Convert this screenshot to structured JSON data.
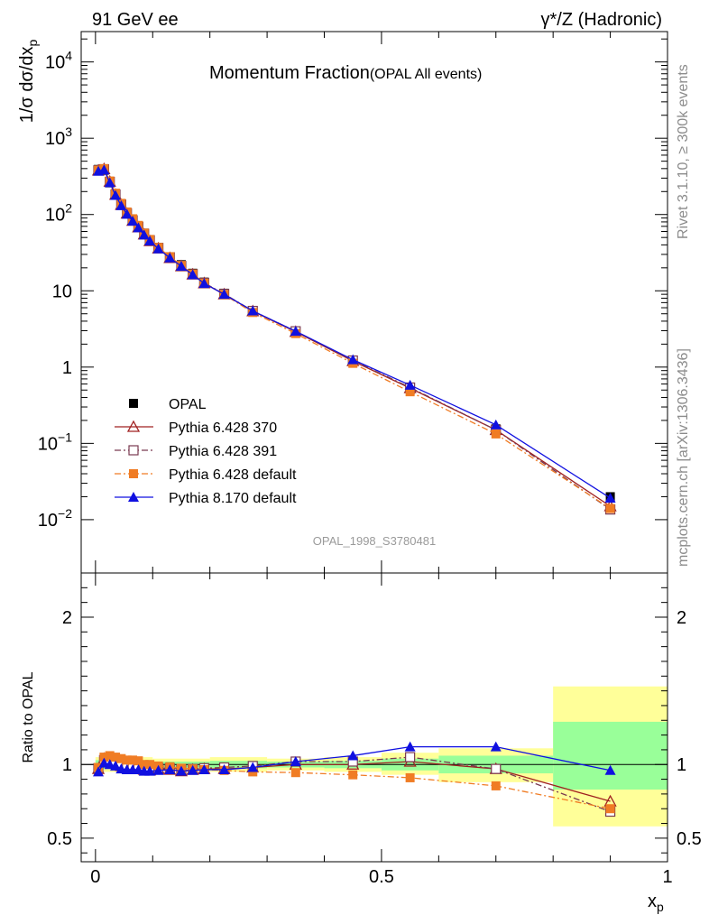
{
  "header": {
    "energy_label": "91 GeV ee",
    "process_label": "γ*/Z (Hadronic)"
  },
  "side_labels": {
    "rivet": "Rivet 3.1.10, ≥ 300k events",
    "site": "mcplots.cern.ch [arXiv:1306.3436]"
  },
  "chart_data": [
    {
      "type": "line",
      "panel": "main",
      "title": "Momentum Fraction",
      "subtitle": "(OPAL All events)",
      "watermark": "OPAL_1998_S3780481",
      "ylabel_html": "1/σ dσ/dx",
      "ylabel_sub": "p",
      "xlabel": "x",
      "xlabel_sub": "p",
      "yscale": "log",
      "ylim": [
        0.002,
        25000
      ],
      "xlim": [
        -0.025,
        1.0
      ],
      "legend_position": "lower-left",
      "y_ticks": [
        {
          "label_base": "10",
          "label_exp": "4",
          "v": 10000
        },
        {
          "label_base": "10",
          "label_exp": "3",
          "v": 1000
        },
        {
          "label_base": "10",
          "label_exp": "2",
          "v": 100
        },
        {
          "label_base": "10",
          "label_exp": "",
          "v": 10
        },
        {
          "label_base": "1",
          "label_exp": "",
          "v": 1
        },
        {
          "label_base": "10",
          "label_exp": "−1",
          "v": 0.1
        },
        {
          "label_base": "10",
          "label_exp": "−2",
          "v": 0.01
        }
      ],
      "x": [
        0.005,
        0.015,
        0.025,
        0.035,
        0.045,
        0.055,
        0.065,
        0.075,
        0.085,
        0.095,
        0.11,
        0.13,
        0.15,
        0.17,
        0.19,
        0.225,
        0.275,
        0.35,
        0.45,
        0.55,
        0.7,
        0.9
      ],
      "series": [
        {
          "name": "OPAL",
          "color": "#000000",
          "marker": "square-filled",
          "line": "none",
          "values": [
            390,
            380,
            260,
            180,
            135,
            105,
            85,
            70,
            57,
            47,
            37,
            28,
            22,
            17,
            13,
            9.3,
            5.5,
            2.9,
            1.2,
            0.52,
            0.155,
            0.02
          ]
        },
        {
          "name": "Pythia 6.428 370",
          "color": "#a02020",
          "marker": "triangle-open",
          "line": "solid",
          "values": [
            378,
            395,
            270,
            182,
            134,
            103,
            83,
            68,
            55,
            45,
            36,
            27,
            21,
            16.4,
            12.6,
            9.0,
            5.4,
            2.9,
            1.2,
            0.53,
            0.15,
            0.015
          ]
        },
        {
          "name": "Pythia 6.428 391",
          "color": "#7a3a50",
          "marker": "square-open",
          "line": "dashdot",
          "values": [
            380,
            392,
            268,
            183,
            135,
            104,
            84,
            69,
            56,
            46,
            36.5,
            27.5,
            21.2,
            16.5,
            12.7,
            9.1,
            5.45,
            2.95,
            1.22,
            0.54,
            0.15,
            0.0136
          ]
        },
        {
          "name": "Pythia 6.428 default",
          "color": "#f07c24",
          "marker": "square-filled",
          "line": "dashdot",
          "values": [
            382,
            400,
            275,
            190,
            140,
            108,
            88,
            72,
            57,
            47,
            37,
            28,
            21.5,
            16.6,
            12.6,
            8.9,
            5.2,
            2.75,
            1.12,
            0.475,
            0.133,
            0.014
          ]
        },
        {
          "name": "Pythia 8.170 default",
          "color": "#1010e0",
          "marker": "triangle-filled",
          "line": "solid",
          "values": [
            370,
            385,
            262,
            178,
            131,
            101,
            82,
            67,
            54,
            45,
            35.5,
            27,
            21,
            16.3,
            12.5,
            9.0,
            5.45,
            2.95,
            1.25,
            0.58,
            0.175,
            0.0192
          ]
        }
      ]
    },
    {
      "type": "line",
      "panel": "ratio",
      "ylabel": "Ratio to OPAL",
      "yscale": "linear",
      "ylim": [
        0.34,
        2.3
      ],
      "xlim": [
        -0.025,
        1.0
      ],
      "y_ticks": [
        {
          "label": "2",
          "v": 2
        },
        {
          "label": "1",
          "v": 1
        },
        {
          "label": "0.5",
          "v": 0.5
        }
      ],
      "x_ticks": [
        {
          "label": "0",
          "v": 0
        },
        {
          "label": "0.5",
          "v": 0.5
        },
        {
          "label": "1",
          "v": 1
        }
      ],
      "bands": [
        {
          "x0": 0.0,
          "x1": 0.1,
          "yellow": [
            0.95,
            1.05
          ],
          "green": [
            0.97,
            1.03
          ]
        },
        {
          "x0": 0.1,
          "x1": 0.2,
          "yellow": [
            0.96,
            1.04
          ],
          "green": [
            0.98,
            1.02
          ]
        },
        {
          "x0": 0.2,
          "x1": 0.3,
          "yellow": [
            0.95,
            1.05
          ],
          "green": [
            0.975,
            1.025
          ]
        },
        {
          "x0": 0.3,
          "x1": 0.4,
          "yellow": [
            0.96,
            1.04
          ],
          "green": [
            0.98,
            1.02
          ]
        },
        {
          "x0": 0.4,
          "x1": 0.5,
          "yellow": [
            0.95,
            1.05
          ],
          "green": [
            0.975,
            1.025
          ]
        },
        {
          "x0": 0.5,
          "x1": 0.6,
          "yellow": [
            0.93,
            1.08
          ],
          "green": [
            0.96,
            1.04
          ]
        },
        {
          "x0": 0.6,
          "x1": 0.8,
          "yellow": [
            0.88,
            1.11
          ],
          "green": [
            0.94,
            1.06
          ]
        },
        {
          "x0": 0.8,
          "x1": 1.0,
          "yellow": [
            0.58,
            1.53
          ],
          "green": [
            0.83,
            1.29
          ]
        }
      ],
      "x": [
        0.005,
        0.015,
        0.025,
        0.035,
        0.045,
        0.055,
        0.065,
        0.075,
        0.085,
        0.095,
        0.11,
        0.13,
        0.15,
        0.17,
        0.19,
        0.225,
        0.275,
        0.35,
        0.45,
        0.55,
        0.7,
        0.9
      ],
      "series": [
        {
          "name": "Pythia 6.428 370",
          "color": "#a02020",
          "marker": "triangle-open",
          "line": "solid",
          "values": [
            0.97,
            1.04,
            1.04,
            1.01,
            0.99,
            0.98,
            0.98,
            0.97,
            0.965,
            0.96,
            0.97,
            0.965,
            0.955,
            0.965,
            0.97,
            0.97,
            0.98,
            1.0,
            1.0,
            1.02,
            0.97,
            0.75
          ]
        },
        {
          "name": "Pythia 6.428 391",
          "color": "#7a3a50",
          "marker": "square-open",
          "line": "dashdot",
          "values": [
            0.975,
            1.03,
            1.03,
            1.015,
            1.0,
            0.99,
            0.985,
            0.98,
            0.98,
            0.975,
            0.975,
            0.975,
            0.97,
            0.97,
            0.975,
            0.98,
            0.99,
            1.02,
            1.02,
            1.05,
            0.97,
            0.68
          ]
        },
        {
          "name": "Pythia 6.428 default",
          "color": "#f07c24",
          "marker": "square-filled",
          "line": "dashdot",
          "values": [
            0.98,
            1.05,
            1.06,
            1.05,
            1.04,
            1.03,
            1.03,
            1.025,
            1.0,
            1.0,
            0.99,
            0.985,
            0.975,
            0.97,
            0.965,
            0.96,
            0.95,
            0.945,
            0.93,
            0.91,
            0.855,
            0.7
          ]
        },
        {
          "name": "Pythia 8.170 default",
          "color": "#1010e0",
          "marker": "triangle-filled",
          "line": "solid",
          "values": [
            0.95,
            1.01,
            1.0,
            0.99,
            0.97,
            0.965,
            0.965,
            0.965,
            0.955,
            0.955,
            0.96,
            0.965,
            0.955,
            0.96,
            0.965,
            0.965,
            0.98,
            1.02,
            1.06,
            1.12,
            1.12,
            0.96
          ]
        }
      ]
    }
  ]
}
